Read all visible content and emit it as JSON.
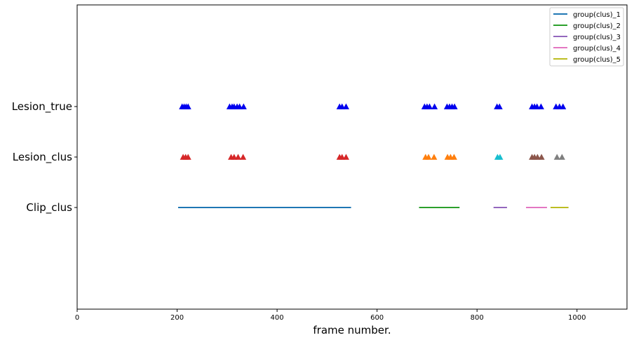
{
  "chart_data": {
    "type": "scatter",
    "title": "",
    "xlabel": "frame number.",
    "ylabel": "",
    "xlim": [
      0,
      1100
    ],
    "xticks": [
      0,
      200,
      400,
      600,
      800,
      1000
    ],
    "grid": false,
    "legend_placement": "top-right",
    "rows": [
      "Clip_clus",
      "Lesion_clus",
      "Lesion_true"
    ],
    "lesion_true": {
      "color": "#0000ee",
      "marker": "triangle",
      "x": [
        210,
        214,
        218,
        222,
        305,
        310,
        314,
        320,
        325,
        333,
        525,
        530,
        538,
        695,
        700,
        705,
        715,
        740,
        745,
        750,
        755,
        840,
        845,
        910,
        915,
        920,
        928,
        958,
        965,
        972
      ]
    },
    "lesion_clus": {
      "marker": "triangle",
      "groups": [
        {
          "color": "#d62728",
          "x": [
            212,
            217,
            222,
            308,
            314,
            322,
            332,
            525,
            530,
            538
          ]
        },
        {
          "color": "#ff7f0e",
          "x": [
            697,
            703,
            714,
            741,
            747,
            754
          ]
        },
        {
          "color": "#17becf",
          "x": [
            841,
            846
          ]
        },
        {
          "color": "#8c564b",
          "x": [
            910,
            915,
            921,
            929
          ]
        },
        {
          "color": "#7f7f7f",
          "x": [
            960,
            970
          ]
        }
      ]
    },
    "series": [
      {
        "name": "group(clus)_1",
        "color": "#1f77b4",
        "x": [
          202,
          548
        ]
      },
      {
        "name": "group(clus)_2",
        "color": "#2ca02c",
        "x": [
          684,
          765
        ]
      },
      {
        "name": "group(clus)_3",
        "color": "#9467bd",
        "x": [
          833,
          860
        ]
      },
      {
        "name": "group(clus)_4",
        "color": "#e377c2",
        "x": [
          898,
          940
        ]
      },
      {
        "name": "group(clus)_5",
        "color": "#bcbd22",
        "x": [
          947,
          983
        ]
      }
    ]
  }
}
